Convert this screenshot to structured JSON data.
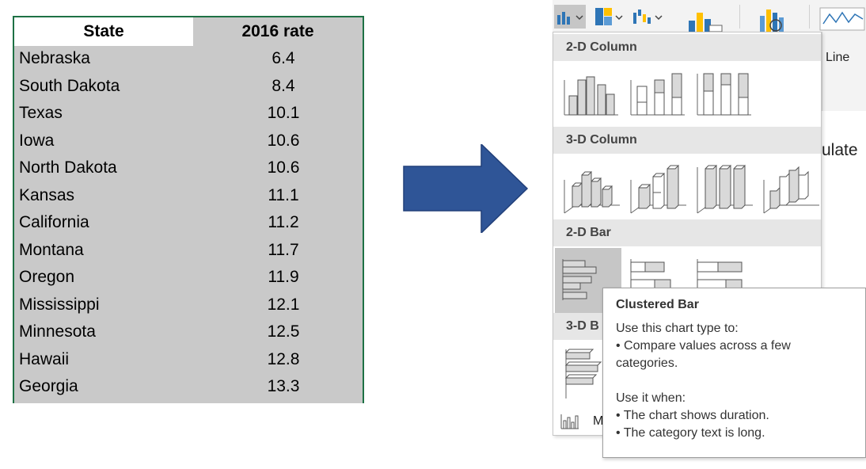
{
  "sheet": {
    "headers": {
      "state": "State",
      "rate": "2016 rate"
    },
    "rows": [
      {
        "state": "Nebraska",
        "rate": "6.4"
      },
      {
        "state": "South Dakota",
        "rate": "8.4"
      },
      {
        "state": "Texas",
        "rate": "10.1"
      },
      {
        "state": "Iowa",
        "rate": "10.6"
      },
      {
        "state": "North Dakota",
        "rate": "10.6"
      },
      {
        "state": "Kansas",
        "rate": "11.1"
      },
      {
        "state": "California",
        "rate": "11.2"
      },
      {
        "state": "Montana",
        "rate": "11.7"
      },
      {
        "state": "Oregon",
        "rate": "11.9"
      },
      {
        "state": "Mississippi",
        "rate": "12.1"
      },
      {
        "state": "Minnesota",
        "rate": "12.5"
      },
      {
        "state": "Hawaii",
        "rate": "12.8"
      },
      {
        "state": "Georgia",
        "rate": "13.3"
      }
    ]
  },
  "colors": {
    "arrow": "#2f5597",
    "sheet_bg": "#c9c9c9",
    "sheet_border": "#1e7145",
    "section_bg": "#e6e6e6",
    "selected_bg": "#c6c6c6"
  },
  "ribbon": {
    "icons": [
      "column-chart-icon",
      "hierarchy-chart-icon",
      "waterfall-chart-icon",
      "pivotchart-icon",
      "3d-map-icon",
      "sparkline-line-icon"
    ],
    "line_label": "Line"
  },
  "background_text": "ulate",
  "gallery": {
    "sections": [
      {
        "title": "2-D Column"
      },
      {
        "title": "3-D Column"
      },
      {
        "title": "2-D Bar"
      },
      {
        "title": "3-D B"
      }
    ],
    "more_label": "M"
  },
  "tooltip": {
    "title": "Clustered Bar",
    "lines": [
      "Use this chart type to:",
      "• Compare values across a few",
      "categories.",
      "",
      "Use it when:",
      "• The chart shows duration.",
      "• The category text is long."
    ]
  }
}
